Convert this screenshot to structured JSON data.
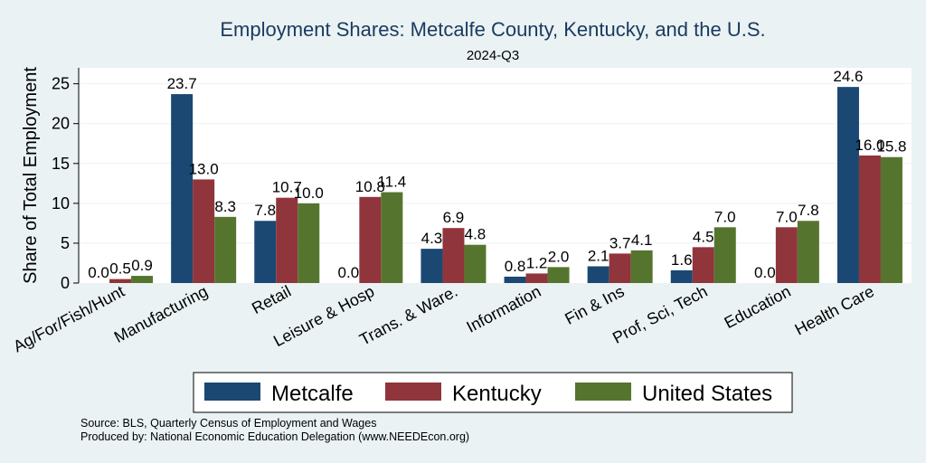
{
  "chart_data": {
    "type": "bar",
    "title": "Employment Shares: Metcalfe County, Kentucky, and the U.S.",
    "subtitle": "2024-Q3",
    "xlabel": "",
    "ylabel": "Share of Total Employment",
    "ylim": [
      0,
      27
    ],
    "yticks": [
      0,
      5,
      10,
      15,
      20,
      25
    ],
    "grid": true,
    "legend_position": "bottom",
    "categories": [
      "Ag/For/Fish/Hunt",
      "Manufacturing",
      "Retail",
      "Leisure & Hosp",
      "Trans. & Ware.",
      "Information",
      "Fin & Ins",
      "Prof, Sci, Tech",
      "Education",
      "Health Care"
    ],
    "series": [
      {
        "name": "Metcalfe",
        "color": "#1a4873",
        "values": [
          0.0,
          23.7,
          7.8,
          0.0,
          4.3,
          0.8,
          2.1,
          1.6,
          0.0,
          24.6
        ]
      },
      {
        "name": "Kentucky",
        "color": "#90353b",
        "values": [
          0.5,
          13.0,
          10.7,
          10.8,
          6.9,
          1.2,
          3.7,
          4.5,
          7.0,
          16.0
        ]
      },
      {
        "name": "United States",
        "color": "#55752f",
        "values": [
          0.9,
          8.3,
          10.0,
          11.4,
          4.8,
          2.0,
          4.1,
          7.0,
          7.8,
          15.8
        ]
      }
    ],
    "source_lines": [
      "Source: BLS, Quarterly Census of Employment and Wages",
      "Produced by: National Economic Education Delegation (www.NEEDEcon.org)"
    ]
  }
}
